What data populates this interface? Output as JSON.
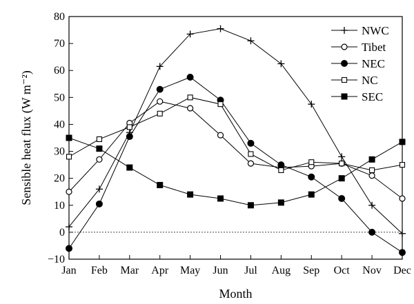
{
  "chart_data": {
    "type": "line",
    "xlabel": "Month",
    "ylabel": "Sensible heat flux (W m⁻²)",
    "categories": [
      "Jan",
      "Feb",
      "Mar",
      "Apr",
      "May",
      "Jun",
      "Jul",
      "Aug",
      "Sep",
      "Oct",
      "Nov",
      "Dec"
    ],
    "ylim": [
      -10,
      80
    ],
    "yticks": [
      -10,
      0,
      10,
      20,
      30,
      40,
      50,
      60,
      70,
      80
    ],
    "ytick_labels": [
      "−10",
      "0",
      "10",
      "20",
      "30",
      "40",
      "50",
      "60",
      "70",
      "80"
    ],
    "zero_line": "dotted",
    "grid": false,
    "legend_position": "top-right",
    "series": [
      {
        "name": "NWC",
        "marker": "plus",
        "values": [
          2,
          16,
          37,
          61.5,
          73.5,
          75.5,
          71,
          62.5,
          47.5,
          28,
          10,
          -0.5
        ]
      },
      {
        "name": "Tibet",
        "marker": "open-circle",
        "values": [
          15,
          27,
          40.5,
          48.5,
          46,
          36,
          25.5,
          24,
          24.5,
          25.5,
          21,
          12.5
        ]
      },
      {
        "name": "NEC",
        "marker": "filled-circle",
        "values": [
          -6,
          10.5,
          35.5,
          53,
          57.5,
          49,
          33,
          25,
          20.5,
          12.5,
          0,
          -7.5
        ]
      },
      {
        "name": "NC",
        "marker": "open-square",
        "values": [
          28,
          34.5,
          39,
          44,
          50,
          47.5,
          29,
          23,
          26,
          25.5,
          23,
          25
        ]
      },
      {
        "name": "SEC",
        "marker": "filled-square",
        "values": [
          35,
          31,
          24,
          17.5,
          14,
          12.5,
          10,
          11,
          14,
          20,
          27,
          33.5
        ]
      }
    ]
  }
}
